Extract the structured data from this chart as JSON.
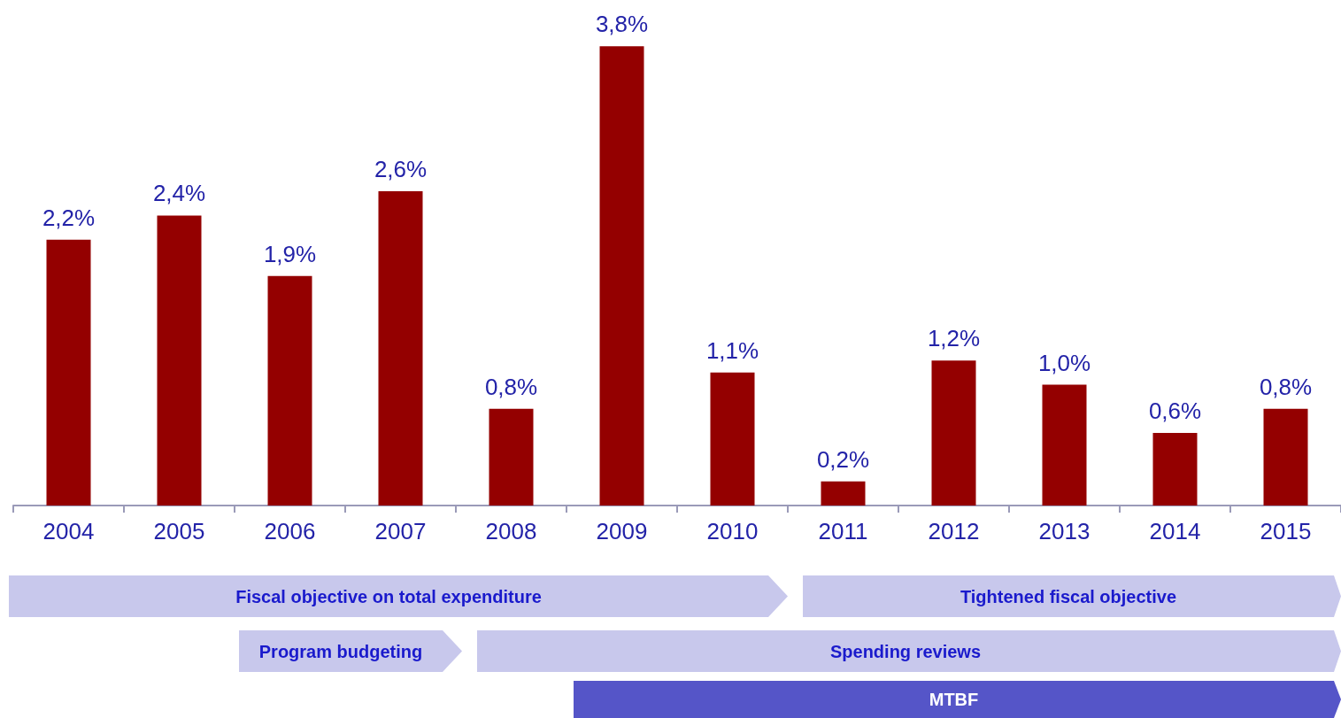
{
  "chart_data": {
    "type": "bar",
    "categories": [
      "2004",
      "2005",
      "2006",
      "2007",
      "2008",
      "2009",
      "2010",
      "2011",
      "2012",
      "2013",
      "2014",
      "2015"
    ],
    "values": [
      2.2,
      2.4,
      1.9,
      2.6,
      0.8,
      3.8,
      1.1,
      0.2,
      1.2,
      1.0,
      0.6,
      0.8
    ],
    "value_labels": [
      "2,2%",
      "2,4%",
      "1,9%",
      "2,6%",
      "0,8%",
      "3,8%",
      "1,1%",
      "0,2%",
      "1,2%",
      "1,0%",
      "0,6%",
      "0,8%"
    ],
    "color": "#940000",
    "tick_labels": "x",
    "annotations": [
      "Fiscal objective on total expenditure",
      "Tightened fiscal objective",
      "Program budgeting",
      "Spending reviews",
      "MTBF"
    ]
  }
}
